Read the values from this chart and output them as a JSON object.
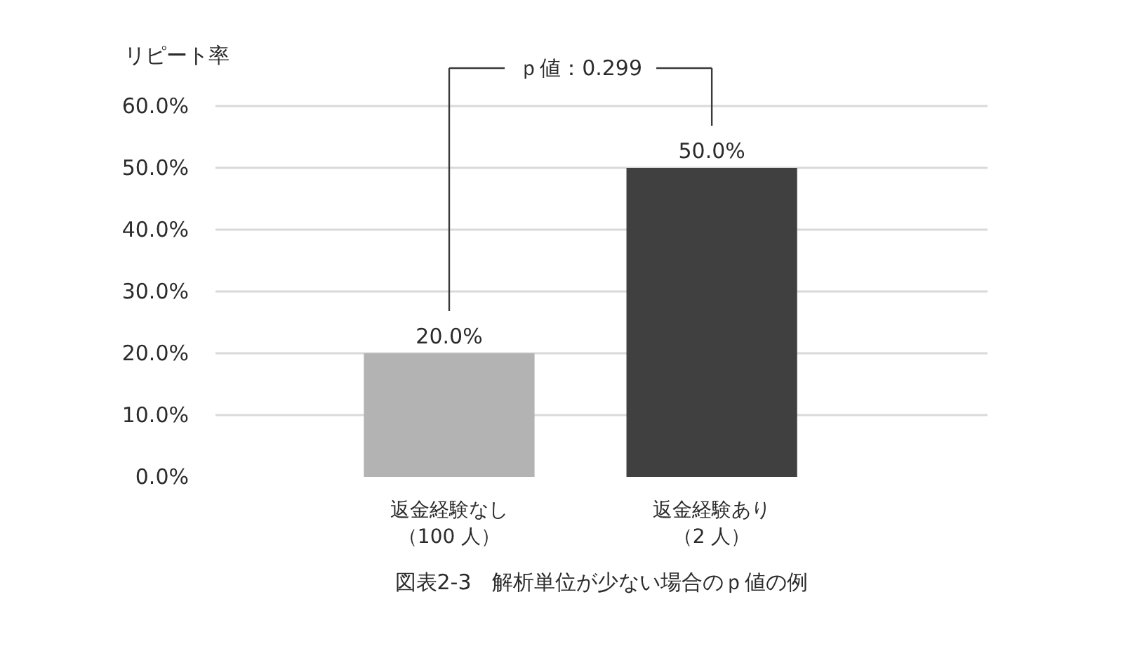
{
  "chart_data": {
    "type": "bar",
    "title": "図表2-3　解析単位が少ない場合のｐ値の例",
    "ylabel": "リピート率",
    "categories": [
      "返金経験なし（100 人）",
      "返金経験あり（2 人）"
    ],
    "values": [
      20,
      50
    ],
    "colors": [
      "#b3b3b3",
      "#404040"
    ],
    "value_labels": [
      "20.0%",
      "50.0%"
    ],
    "ylim": [
      0,
      60
    ],
    "yticks": [
      {
        "value": 0,
        "label": "0.0%"
      },
      {
        "value": 10,
        "label": "10.0%"
      },
      {
        "value": 20,
        "label": "20.0%"
      },
      {
        "value": 30,
        "label": "30.0%"
      },
      {
        "value": 40,
        "label": "40.0%"
      },
      {
        "value": 50,
        "label": "50.0%"
      },
      {
        "value": 60,
        "label": "60.0%"
      }
    ],
    "grid": "y",
    "annotations": [
      "ｐ値：0.299"
    ]
  }
}
